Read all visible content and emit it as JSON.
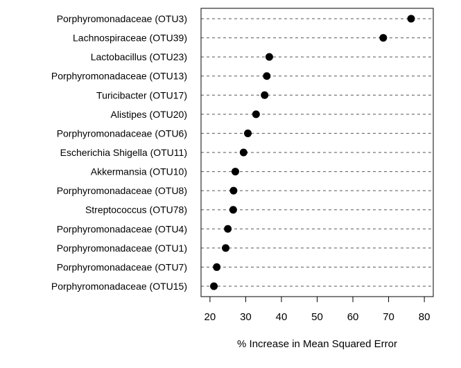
{
  "chart_data": {
    "type": "scatter",
    "subtype": "dotchart",
    "title": "",
    "xlabel": "% Increase in Mean Squared Error",
    "ylabel": "",
    "xlim": [
      17.5,
      82.5
    ],
    "xticks": [
      20,
      30,
      40,
      50,
      60,
      70,
      80
    ],
    "grid": "horizontal dashed reference lines",
    "categories": [
      "Porphyromonadaceae (OTU3)",
      "Lachnospiraceae (OTU39)",
      "Lactobacillus (OTU23)",
      "Porphyromonadaceae (OTU13)",
      "Turicibacter (OTU17)",
      "Alistipes (OTU20)",
      "Porphyromonadaceae (OTU6)",
      "Escherichia Shigella (OTU11)",
      "Akkermansia (OTU10)",
      "Porphyromonadaceae (OTU8)",
      "Streptococcus (OTU78)",
      "Porphyromonadaceae (OTU4)",
      "Porphyromonadaceae (OTU1)",
      "Porphyromonadaceae (OTU7)",
      "Porphyromonadaceae (OTU15)"
    ],
    "values": [
      76.3,
      68.5,
      36.6,
      35.9,
      35.3,
      32.9,
      30.6,
      29.4,
      27.1,
      26.6,
      26.5,
      25.0,
      24.4,
      21.9,
      21.1
    ],
    "colors": {
      "point": "#000000",
      "guide": "#555555",
      "frame": "#000000"
    }
  }
}
